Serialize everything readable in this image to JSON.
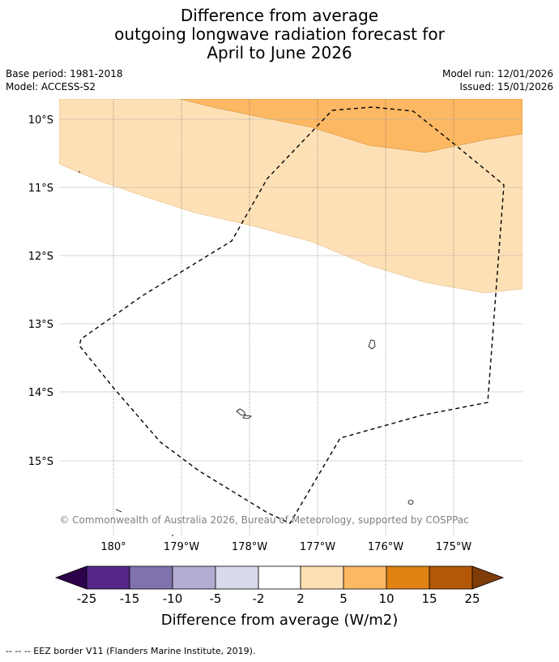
{
  "title": {
    "line1": "Difference from average",
    "line2": "outgoing longwave radiation forecast for",
    "line3": "April to June 2026"
  },
  "meta": {
    "base_period": "Base period: 1981-2018",
    "model": "Model: ACCESS-S2",
    "model_run": "Model run: 12/01/2026",
    "issued": "Issued: 15/01/2026"
  },
  "map": {
    "latitude_labels": [
      "10°S",
      "11°S",
      "12°S",
      "13°S",
      "14°S",
      "15°S"
    ],
    "longitude_labels": [
      "180°",
      "179°W",
      "178°W",
      "177°W",
      "176°W",
      "175°W"
    ],
    "copyright": "© Commonwealth of Australia 2026, Bureau of Meteorology, supported by COSPPac"
  },
  "colorbar": {
    "tick_labels": [
      "-25",
      "-15",
      "-10",
      "-5",
      "-2",
      "2",
      "5",
      "10",
      "15",
      "25"
    ],
    "colors": [
      "#6a3d9a",
      "#5c2a8a",
      "#8072ad",
      "#b2abd2",
      "#d8daeb",
      "#ffffff",
      "#fee0b6",
      "#fdb863",
      "#e08214",
      "#b35806",
      "#7f3b08"
    ],
    "label": "Difference from average (W/m2)"
  },
  "legend": {
    "eez": "--  --  -- EEZ border V11 (Flanders Marine Institute, 2019)."
  }
}
